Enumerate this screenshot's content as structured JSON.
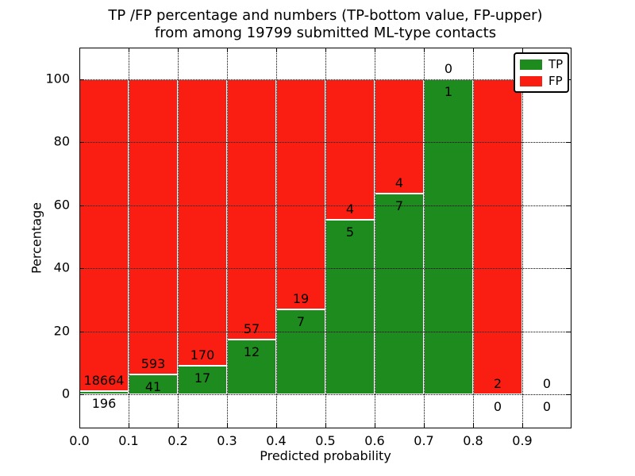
{
  "chart_data": {
    "type": "bar",
    "stacked": true,
    "title_lines": [
      "TP /FP percentage and numbers (TP-bottom value, FP-upper)",
      "from among 19799 submitted ML-type contacts"
    ],
    "xlabel": "Predicted probability",
    "ylabel": "Percentage",
    "xlim": [
      0,
      1.0
    ],
    "ylim": [
      -10.7,
      110
    ],
    "xticks": [
      0,
      0.1,
      0.2,
      0.3,
      0.4,
      0.5,
      0.6,
      0.7,
      0.8,
      0.9
    ],
    "xtick_labels": [
      "0.0",
      "0.1",
      "0.2",
      "0.3",
      "0.4",
      "0.5",
      "0.6",
      "0.7",
      "0.8",
      "0.9"
    ],
    "yticks": [
      0,
      20,
      40,
      60,
      80,
      100
    ],
    "ytick_labels": [
      "0",
      "20",
      "40",
      "60",
      "80",
      "100"
    ],
    "grid": true,
    "legend": {
      "position": "upper right",
      "entries": [
        {
          "label": "TP",
          "color": "#1e8b1e"
        },
        {
          "label": "FP",
          "color": "#fa1d12"
        }
      ]
    },
    "bins": [
      {
        "x0": 0.0,
        "x1": 0.1,
        "tp": 196,
        "fp": 18664
      },
      {
        "x0": 0.1,
        "x1": 0.2,
        "tp": 41,
        "fp": 593
      },
      {
        "x0": 0.2,
        "x1": 0.3,
        "tp": 17,
        "fp": 170
      },
      {
        "x0": 0.3,
        "x1": 0.4,
        "tp": 12,
        "fp": 57
      },
      {
        "x0": 0.4,
        "x1": 0.5,
        "tp": 7,
        "fp": 19
      },
      {
        "x0": 0.5,
        "x1": 0.6,
        "tp": 5,
        "fp": 4
      },
      {
        "x0": 0.6,
        "x1": 0.7,
        "tp": 7,
        "fp": 4
      },
      {
        "x0": 0.7,
        "x1": 0.8,
        "tp": 1,
        "fp": 0
      },
      {
        "x0": 0.8,
        "x1": 0.9,
        "tp": 0,
        "fp": 2
      },
      {
        "x0": 0.9,
        "x1": 1.0,
        "tp": 0,
        "fp": 0
      }
    ],
    "colors": {
      "tp": "#1e8b1e",
      "fp": "#fa1d12",
      "edge": "#ffffff",
      "grid": "#000000"
    }
  }
}
